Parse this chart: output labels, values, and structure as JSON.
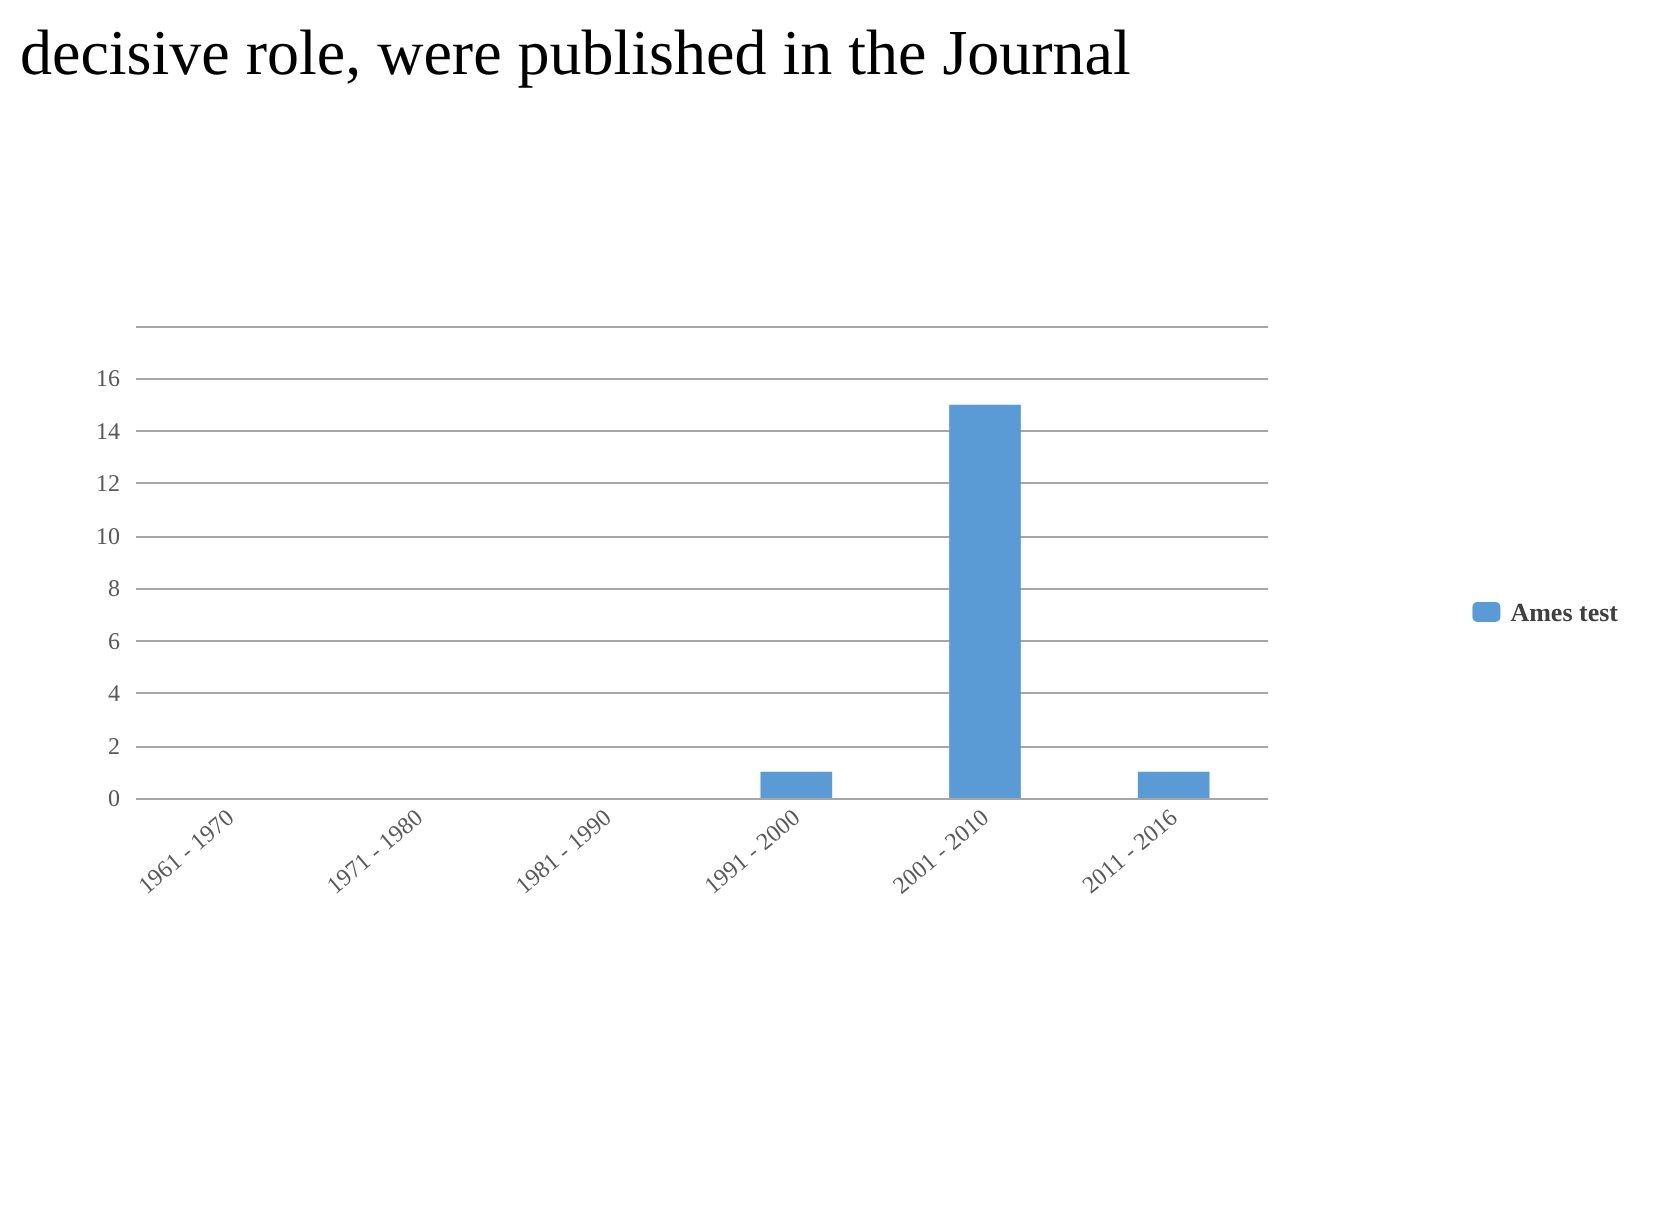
{
  "chart_data": {
    "type": "bar",
    "annotations": [
      "decisive role, were published in the Journal"
    ],
    "categories": [
      "1961 - 1970",
      "1971 - 1980",
      "1981 - 1990",
      "1991 - 2000",
      "2001 - 2010",
      "2011 - 2016"
    ],
    "series": [
      {
        "name": "Ames test",
        "color": "#5b9bd5",
        "values": [
          0,
          0,
          0,
          1,
          15,
          1
        ]
      }
    ],
    "ylim": [
      0,
      18
    ],
    "yticks": [
      0,
      2,
      4,
      6,
      8,
      10,
      12,
      14,
      16,
      {
        "value": 18,
        "label": null
      }
    ],
    "grid": "y",
    "legend": "right"
  }
}
